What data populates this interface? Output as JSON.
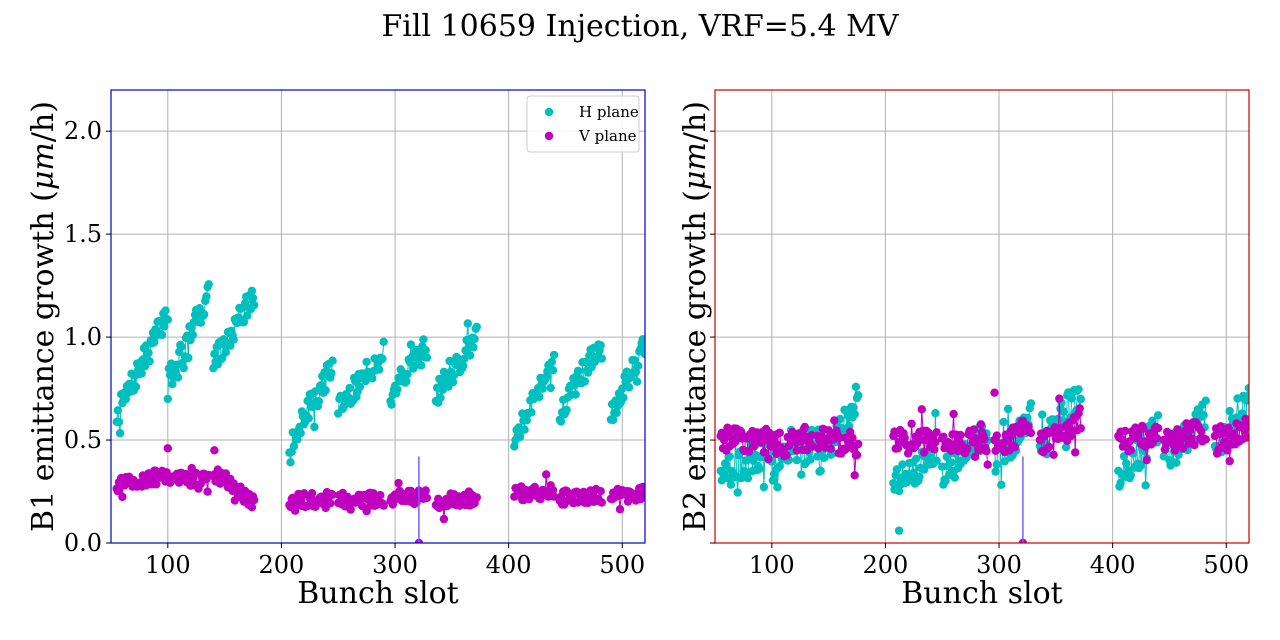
{
  "figure": {
    "title": "Fill 10659 Injection, VRF=5.4 MV"
  },
  "colors": {
    "h_plane": "#00bfbf",
    "v_plane": "#bf00bf",
    "grid": "#b0b0b0",
    "left_frame": "#0000cc",
    "right_frame": "#cc0000",
    "marker_line": "#7b5cff"
  },
  "chart_data": [
    {
      "type": "scatter",
      "title": "",
      "xlabel": "Bunch slot",
      "ylabel": "B1 emittance growth (μm/h)",
      "ylabel_parts": {
        "prefix": "B1 emittance growth (",
        "unit_italic": "μm",
        "suffix": "/h)"
      },
      "xlim": [
        50,
        520
      ],
      "ylim": [
        0.0,
        2.2
      ],
      "xticks": [
        100,
        200,
        300,
        400,
        500
      ],
      "yticks": [
        0.0,
        0.5,
        1.0,
        1.5,
        2.0
      ],
      "yticklabels": [
        "0.0",
        "0.5",
        "1.0",
        "1.5",
        "2.0"
      ],
      "grid": true,
      "legend": {
        "placement": "top-right",
        "entries": [
          "H plane",
          "V plane"
        ]
      },
      "vertical_marker_x": 321,
      "series": [
        {
          "name": "H plane",
          "trains": [
            {
              "start": 55,
              "end": 100,
              "y0": 0.62,
              "y1": 1.12
            },
            {
              "start": 100,
              "end": 136,
              "y0": 0.78,
              "y1": 1.2
            },
            {
              "start": 140,
              "end": 176,
              "y0": 0.88,
              "y1": 1.2
            },
            {
              "start": 207,
              "end": 245,
              "y0": 0.47,
              "y1": 0.86
            },
            {
              "start": 250,
              "end": 290,
              "y0": 0.66,
              "y1": 0.92
            },
            {
              "start": 296,
              "end": 328,
              "y0": 0.72,
              "y1": 0.96
            },
            {
              "start": 336,
              "end": 372,
              "y0": 0.72,
              "y1": 1.0
            },
            {
              "start": 405,
              "end": 440,
              "y0": 0.5,
              "y1": 0.9
            },
            {
              "start": 445,
              "end": 482,
              "y0": 0.63,
              "y1": 0.98
            },
            {
              "start": 490,
              "end": 520,
              "y0": 0.63,
              "y1": 0.96
            }
          ],
          "outliers": [
            {
              "x": 321,
              "y": 0.0
            }
          ]
        },
        {
          "name": "V plane",
          "trains": [
            {
              "start": 55,
              "end": 100,
              "y0": 0.28,
              "y1": 0.33
            },
            {
              "start": 100,
              "end": 136,
              "y0": 0.3,
              "y1": 0.32
            },
            {
              "start": 140,
              "end": 176,
              "y0": 0.34,
              "y1": 0.2
            },
            {
              "start": 207,
              "end": 245,
              "y0": 0.2,
              "y1": 0.22
            },
            {
              "start": 250,
              "end": 290,
              "y0": 0.21,
              "y1": 0.21
            },
            {
              "start": 296,
              "end": 328,
              "y0": 0.22,
              "y1": 0.22
            },
            {
              "start": 336,
              "end": 372,
              "y0": 0.2,
              "y1": 0.22
            },
            {
              "start": 405,
              "end": 440,
              "y0": 0.24,
              "y1": 0.25
            },
            {
              "start": 445,
              "end": 482,
              "y0": 0.22,
              "y1": 0.23
            },
            {
              "start": 490,
              "end": 520,
              "y0": 0.23,
              "y1": 0.24
            }
          ],
          "outliers": [
            {
              "x": 100,
              "y": 0.46
            },
            {
              "x": 141,
              "y": 0.45
            },
            {
              "x": 321,
              "y": 0.0
            }
          ]
        }
      ]
    },
    {
      "type": "scatter",
      "title": "",
      "xlabel": "Bunch slot",
      "ylabel": "B2 emittance growth (μm/h)",
      "ylabel_parts": {
        "prefix": "B2 emittance growth (",
        "unit_italic": "μm",
        "suffix": "/h)"
      },
      "xlim": [
        50,
        520
      ],
      "ylim": [
        0.0,
        2.2
      ],
      "xticks": [
        100,
        200,
        300,
        400,
        500
      ],
      "yticks": [
        0.0,
        0.5,
        1.0,
        1.5,
        2.0
      ],
      "yticklabels": [],
      "grid": true,
      "vertical_marker_x": 321,
      "series": [
        {
          "name": "H plane",
          "trains": [
            {
              "start": 55,
              "end": 100,
              "y0": 0.33,
              "y1": 0.45
            },
            {
              "start": 100,
              "end": 136,
              "y0": 0.38,
              "y1": 0.48
            },
            {
              "start": 140,
              "end": 176,
              "y0": 0.4,
              "y1": 0.7
            },
            {
              "start": 207,
              "end": 245,
              "y0": 0.27,
              "y1": 0.45
            },
            {
              "start": 250,
              "end": 290,
              "y0": 0.35,
              "y1": 0.52
            },
            {
              "start": 296,
              "end": 328,
              "y0": 0.4,
              "y1": 0.6
            },
            {
              "start": 336,
              "end": 372,
              "y0": 0.45,
              "y1": 0.74
            },
            {
              "start": 405,
              "end": 440,
              "y0": 0.33,
              "y1": 0.55
            },
            {
              "start": 445,
              "end": 482,
              "y0": 0.4,
              "y1": 0.62
            },
            {
              "start": 490,
              "end": 520,
              "y0": 0.45,
              "y1": 0.72
            }
          ],
          "outliers": [
            {
              "x": 212,
              "y": 0.06
            },
            {
              "x": 321,
              "y": 0.0
            }
          ]
        },
        {
          "name": "V plane",
          "trains": [
            {
              "start": 55,
              "end": 100,
              "y0": 0.5,
              "y1": 0.5
            },
            {
              "start": 100,
              "end": 136,
              "y0": 0.47,
              "y1": 0.5
            },
            {
              "start": 140,
              "end": 176,
              "y0": 0.5,
              "y1": 0.48
            },
            {
              "start": 207,
              "end": 245,
              "y0": 0.5,
              "y1": 0.48
            },
            {
              "start": 250,
              "end": 290,
              "y0": 0.48,
              "y1": 0.5
            },
            {
              "start": 296,
              "end": 328,
              "y0": 0.48,
              "y1": 0.55
            },
            {
              "start": 336,
              "end": 372,
              "y0": 0.48,
              "y1": 0.6
            },
            {
              "start": 405,
              "end": 440,
              "y0": 0.5,
              "y1": 0.52
            },
            {
              "start": 445,
              "end": 482,
              "y0": 0.48,
              "y1": 0.55
            },
            {
              "start": 490,
              "end": 520,
              "y0": 0.5,
              "y1": 0.55
            }
          ],
          "outliers": [
            {
              "x": 296,
              "y": 0.73
            },
            {
              "x": 321,
              "y": 0.0
            }
          ]
        }
      ]
    }
  ]
}
